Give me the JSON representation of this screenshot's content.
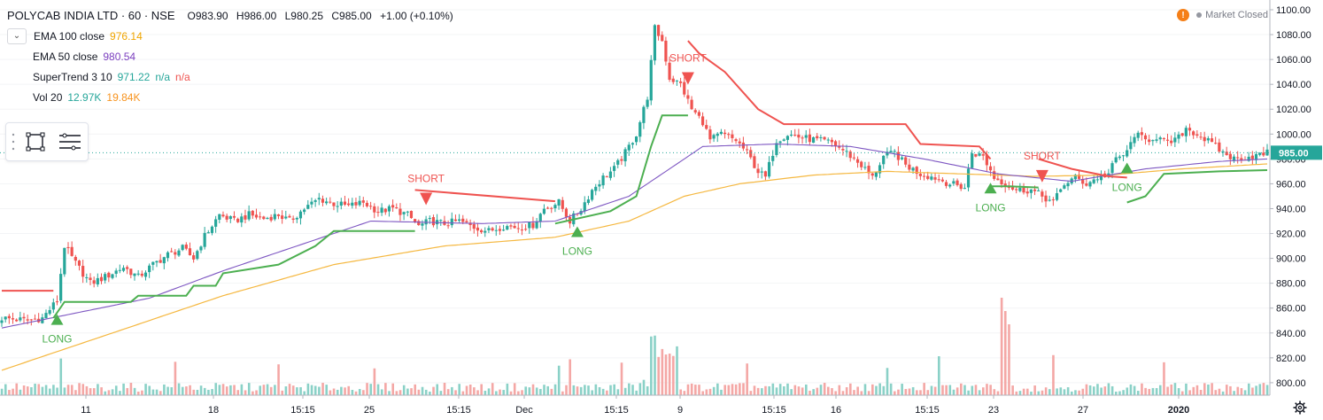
{
  "header": {
    "symbol": "POLYCAB INDIA LTD · 60 · NSE",
    "open": "O983.90",
    "high": "H986.00",
    "low": "L980.25",
    "close": "C985.00",
    "change": "+1.00 (+0.10%)"
  },
  "indicators": [
    {
      "name": "EMA 100 close",
      "value": "976.14",
      "color": "#f0a500"
    },
    {
      "name": "EMA 50 close",
      "value": "980.54",
      "color": "#7b3fbf"
    },
    {
      "name": "SuperTrend 3 10",
      "value": "971.22",
      "extra1": "n/a",
      "extra2": "n/a",
      "color": "#26a69a",
      "color2": "#ef5350"
    },
    {
      "name": "Vol 20",
      "value": "12.97K",
      "value2": "19.84K",
      "color": "#26a69a",
      "color2": "#f7931e"
    }
  ],
  "market_status": "Market Closed",
  "colors": {
    "up": "#26a69a",
    "down": "#ef5350",
    "ema100": "#f5b841",
    "ema50": "#7e57c2",
    "st_up": "#4caf50",
    "st_down": "#ef5350",
    "price_label": "#26a69a"
  },
  "chart_data": {
    "type": "candlestick",
    "title": "POLYCAB INDIA LTD · 60 · NSE",
    "ylim": [
      790,
      1105
    ],
    "y_ticks": [
      800,
      820,
      840,
      860,
      880,
      900,
      920,
      940,
      960,
      980,
      1000,
      1020,
      1040,
      1060,
      1080,
      1100
    ],
    "y_tick_labels": [
      "800.00",
      "820.00",
      "840.00",
      "860.00",
      "880.00",
      "900.00",
      "920.00",
      "940.00",
      "960.00",
      "980.00",
      "1000.00",
      "1020.00",
      "1040.00",
      "1060.00",
      "1080.00",
      "1100.00"
    ],
    "last_price": "985.00",
    "x_tick_labels": [
      "11",
      "18",
      "15:15",
      "25",
      "15:15",
      "Dec",
      "15:15",
      "9",
      "15:15",
      "16",
      "15:15",
      "23",
      "27",
      "2020"
    ],
    "close_path": [
      {
        "i": 0,
        "c": 852
      },
      {
        "i": 7,
        "c": 850
      },
      {
        "i": 11,
        "c": 852
      },
      {
        "i": 15,
        "c": 866
      },
      {
        "i": 17,
        "c": 910
      },
      {
        "i": 20,
        "c": 896
      },
      {
        "i": 24,
        "c": 880
      },
      {
        "i": 28,
        "c": 885
      },
      {
        "i": 33,
        "c": 893
      },
      {
        "i": 37,
        "c": 885
      },
      {
        "i": 41,
        "c": 895
      },
      {
        "i": 45,
        "c": 903
      },
      {
        "i": 49,
        "c": 908
      },
      {
        "i": 52,
        "c": 900
      },
      {
        "i": 55,
        "c": 918
      },
      {
        "i": 59,
        "c": 935
      },
      {
        "i": 63,
        "c": 930
      },
      {
        "i": 67,
        "c": 935
      },
      {
        "i": 71,
        "c": 932
      },
      {
        "i": 75,
        "c": 935
      },
      {
        "i": 78,
        "c": 930
      },
      {
        "i": 82,
        "c": 940
      },
      {
        "i": 86,
        "c": 948
      },
      {
        "i": 90,
        "c": 944
      },
      {
        "i": 94,
        "c": 942
      },
      {
        "i": 98,
        "c": 945
      },
      {
        "i": 102,
        "c": 938
      },
      {
        "i": 106,
        "c": 940
      },
      {
        "i": 110,
        "c": 935
      },
      {
        "i": 113,
        "c": 926
      },
      {
        "i": 116,
        "c": 930
      },
      {
        "i": 120,
        "c": 928
      },
      {
        "i": 124,
        "c": 930
      },
      {
        "i": 128,
        "c": 925
      },
      {
        "i": 132,
        "c": 922
      },
      {
        "i": 136,
        "c": 926
      },
      {
        "i": 140,
        "c": 925
      },
      {
        "i": 144,
        "c": 927
      },
      {
        "i": 147,
        "c": 940
      },
      {
        "i": 151,
        "c": 945
      },
      {
        "i": 154,
        "c": 930
      },
      {
        "i": 157,
        "c": 940
      },
      {
        "i": 160,
        "c": 955
      },
      {
        "i": 163,
        "c": 965
      },
      {
        "i": 166,
        "c": 972
      },
      {
        "i": 169,
        "c": 985
      },
      {
        "i": 172,
        "c": 1000
      },
      {
        "i": 175,
        "c": 1030
      },
      {
        "i": 177,
        "c": 1085
      },
      {
        "i": 179,
        "c": 1075
      },
      {
        "i": 181,
        "c": 1045
      },
      {
        "i": 184,
        "c": 1040
      },
      {
        "i": 187,
        "c": 1020
      },
      {
        "i": 190,
        "c": 1010
      },
      {
        "i": 192,
        "c": 995
      },
      {
        "i": 195,
        "c": 1000
      },
      {
        "i": 199,
        "c": 995
      },
      {
        "i": 202,
        "c": 985
      },
      {
        "i": 205,
        "c": 970
      },
      {
        "i": 207,
        "c": 965
      },
      {
        "i": 210,
        "c": 995
      },
      {
        "i": 213,
        "c": 1000
      },
      {
        "i": 217,
        "c": 997
      },
      {
        "i": 221,
        "c": 995
      },
      {
        "i": 225,
        "c": 993
      },
      {
        "i": 229,
        "c": 985
      },
      {
        "i": 233,
        "c": 975
      },
      {
        "i": 236,
        "c": 965
      },
      {
        "i": 239,
        "c": 982
      },
      {
        "i": 242,
        "c": 985
      },
      {
        "i": 245,
        "c": 975
      },
      {
        "i": 249,
        "c": 968
      },
      {
        "i": 253,
        "c": 965
      },
      {
        "i": 257,
        "c": 960
      },
      {
        "i": 261,
        "c": 957
      },
      {
        "i": 263,
        "c": 985
      },
      {
        "i": 266,
        "c": 982
      },
      {
        "i": 269,
        "c": 965
      },
      {
        "i": 272,
        "c": 960
      },
      {
        "i": 275,
        "c": 955
      },
      {
        "i": 279,
        "c": 955
      },
      {
        "i": 282,
        "c": 950
      },
      {
        "i": 285,
        "c": 945
      },
      {
        "i": 288,
        "c": 960
      },
      {
        "i": 291,
        "c": 965
      },
      {
        "i": 294,
        "c": 960
      },
      {
        "i": 297,
        "c": 965
      },
      {
        "i": 300,
        "c": 968
      },
      {
        "i": 302,
        "c": 980
      },
      {
        "i": 305,
        "c": 985
      },
      {
        "i": 307,
        "c": 1000
      },
      {
        "i": 310,
        "c": 995
      },
      {
        "i": 313,
        "c": 998
      },
      {
        "i": 316,
        "c": 992
      },
      {
        "i": 319,
        "c": 997
      },
      {
        "i": 321,
        "c": 1005
      },
      {
        "i": 325,
        "c": 998
      },
      {
        "i": 328,
        "c": 992
      },
      {
        "i": 331,
        "c": 985
      },
      {
        "i": 334,
        "c": 980
      },
      {
        "i": 338,
        "c": 982
      },
      {
        "i": 341,
        "c": 983
      },
      {
        "i": 343,
        "c": 985
      }
    ],
    "volume_spike_index": 271,
    "ema100_path": [
      {
        "i": 0,
        "v": 810
      },
      {
        "i": 30,
        "v": 840
      },
      {
        "i": 60,
        "v": 870
      },
      {
        "i": 90,
        "v": 895
      },
      {
        "i": 120,
        "v": 910
      },
      {
        "i": 150,
        "v": 917
      },
      {
        "i": 170,
        "v": 930
      },
      {
        "i": 185,
        "v": 950
      },
      {
        "i": 200,
        "v": 960
      },
      {
        "i": 220,
        "v": 967
      },
      {
        "i": 240,
        "v": 970
      },
      {
        "i": 260,
        "v": 968
      },
      {
        "i": 280,
        "v": 966
      },
      {
        "i": 300,
        "v": 967
      },
      {
        "i": 320,
        "v": 972
      },
      {
        "i": 343,
        "v": 976
      }
    ],
    "ema50_path": [
      {
        "i": 0,
        "v": 844
      },
      {
        "i": 20,
        "v": 856
      },
      {
        "i": 40,
        "v": 868
      },
      {
        "i": 60,
        "v": 890
      },
      {
        "i": 80,
        "v": 910
      },
      {
        "i": 100,
        "v": 930
      },
      {
        "i": 130,
        "v": 928
      },
      {
        "i": 150,
        "v": 930
      },
      {
        "i": 170,
        "v": 950
      },
      {
        "i": 180,
        "v": 970
      },
      {
        "i": 190,
        "v": 990
      },
      {
        "i": 210,
        "v": 992
      },
      {
        "i": 230,
        "v": 990
      },
      {
        "i": 250,
        "v": 980
      },
      {
        "i": 270,
        "v": 968
      },
      {
        "i": 290,
        "v": 962
      },
      {
        "i": 310,
        "v": 972
      },
      {
        "i": 330,
        "v": 978
      },
      {
        "i": 343,
        "v": 980
      }
    ],
    "supertrend_segments": [
      {
        "trend": "down",
        "points": [
          {
            "i": 0,
            "v": 874
          },
          {
            "i": 14,
            "v": 874
          }
        ]
      },
      {
        "trend": "up",
        "points": [
          {
            "i": 14,
            "v": 852
          },
          {
            "i": 17,
            "v": 865
          },
          {
            "i": 35,
            "v": 865
          },
          {
            "i": 37,
            "v": 870
          },
          {
            "i": 50,
            "v": 870
          },
          {
            "i": 52,
            "v": 878
          },
          {
            "i": 58,
            "v": 878
          },
          {
            "i": 60,
            "v": 888
          },
          {
            "i": 75,
            "v": 895
          },
          {
            "i": 85,
            "v": 910
          },
          {
            "i": 90,
            "v": 922
          },
          {
            "i": 112,
            "v": 922
          }
        ]
      },
      {
        "trend": "down",
        "points": [
          {
            "i": 112,
            "v": 955
          },
          {
            "i": 150,
            "v": 946
          }
        ]
      },
      {
        "trend": "up",
        "points": [
          {
            "i": 150,
            "v": 928
          },
          {
            "i": 165,
            "v": 938
          },
          {
            "i": 172,
            "v": 950
          },
          {
            "i": 176,
            "v": 990
          },
          {
            "i": 179,
            "v": 1015
          },
          {
            "i": 186,
            "v": 1015
          }
        ]
      },
      {
        "trend": "down",
        "points": [
          {
            "i": 186,
            "v": 1075
          },
          {
            "i": 189,
            "v": 1065
          },
          {
            "i": 196,
            "v": 1050
          },
          {
            "i": 205,
            "v": 1020
          },
          {
            "i": 212,
            "v": 1008
          },
          {
            "i": 245,
            "v": 1008
          },
          {
            "i": 249,
            "v": 992
          },
          {
            "i": 265,
            "v": 990
          },
          {
            "i": 268,
            "v": 980
          }
        ]
      },
      {
        "trend": "up",
        "points": [
          {
            "i": 268,
            "v": 958
          },
          {
            "i": 273,
            "v": 958
          },
          {
            "i": 281,
            "v": 957
          }
        ]
      },
      {
        "trend": "down",
        "points": [
          {
            "i": 281,
            "v": 980
          },
          {
            "i": 290,
            "v": 972
          },
          {
            "i": 300,
            "v": 966
          },
          {
            "i": 305,
            "v": 965
          }
        ]
      },
      {
        "trend": "up",
        "points": [
          {
            "i": 305,
            "v": 945
          },
          {
            "i": 310,
            "v": 950
          },
          {
            "i": 315,
            "v": 968
          },
          {
            "i": 330,
            "v": 970
          },
          {
            "i": 343,
            "v": 971
          }
        ]
      }
    ],
    "signals": [
      {
        "type": "long",
        "i": 15,
        "label": "LONG"
      },
      {
        "type": "short",
        "i": 115,
        "label": "SHORT"
      },
      {
        "type": "long",
        "i": 156,
        "label": "LONG"
      },
      {
        "type": "short",
        "i": 186,
        "label": "SHORT"
      },
      {
        "type": "long",
        "i": 268,
        "label": "LONG"
      },
      {
        "type": "short",
        "i": 282,
        "label": "SHORT"
      },
      {
        "type": "long",
        "i": 305,
        "label": "LONG"
      }
    ]
  }
}
